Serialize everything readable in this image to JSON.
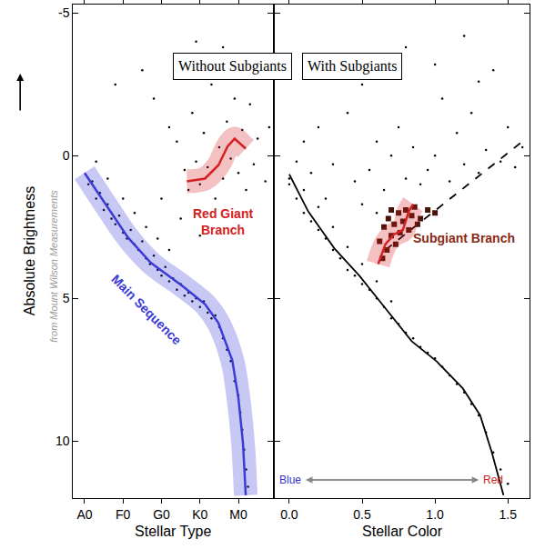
{
  "chart_data": [
    {
      "type": "scatter",
      "title": "Without Subgiants",
      "subtitle": "from Mount Wilson Measurements",
      "x_label": "Stellar Type",
      "y_label": "Absolute Brightness",
      "xlim": [
        -0.3,
        4.9
      ],
      "ylim": [
        12,
        -5.3
      ],
      "xticks": [
        {
          "value": 0,
          "label": "A0"
        },
        {
          "value": 1,
          "label": "F0"
        },
        {
          "value": 2,
          "label": "G0"
        },
        {
          "value": 3,
          "label": "K0"
        },
        {
          "value": 4,
          "label": "M0"
        }
      ],
      "yticks": [
        -5,
        0,
        5,
        10
      ],
      "grid": false,
      "series": [
        {
          "type": "scatter",
          "marker": "dot",
          "color": "#000000",
          "x": [
            0.1,
            0.2,
            0.3,
            0.4,
            0.5,
            0.6,
            0.7,
            0.8,
            0.9,
            1.0,
            1.1,
            1.2,
            1.3,
            1.4,
            1.5,
            1.6,
            1.7,
            1.8,
            1.9,
            2.0,
            2.1,
            2.2,
            2.3,
            2.4,
            2.5,
            2.6,
            2.7,
            2.8,
            2.9,
            3.0,
            3.1,
            3.2,
            3.3,
            3.4,
            3.5,
            3.6,
            3.7,
            3.8,
            3.9,
            4.0,
            4.05,
            4.1,
            4.15,
            4.2,
            4.25,
            0.3,
            0.6,
            1.0,
            1.3,
            1.6,
            1.9,
            2.2,
            2.4,
            2.6,
            2.7,
            2.8,
            2.9,
            3.0,
            3.1,
            3.2,
            3.3,
            3.4,
            3.5,
            3.6,
            3.7,
            3.8,
            3.9,
            4.0,
            4.1,
            4.2,
            4.3,
            4.4,
            4.5,
            4.6,
            3.2,
            2.9,
            3.6,
            4.2,
            1.8,
            2.2,
            1.5,
            0.8,
            4.7,
            4.8,
            2.5,
            2.0,
            3.0
          ],
          "values": [
            1.0,
            0.9,
            1.5,
            1.3,
            1.9,
            1.7,
            2.2,
            2.4,
            2.1,
            2.7,
            2.9,
            2.6,
            3.1,
            3.3,
            3.0,
            3.6,
            3.8,
            3.5,
            4.0,
            4.2,
            3.9,
            4.4,
            4.3,
            4.7,
            4.5,
            4.9,
            4.8,
            5.1,
            5.0,
            5.3,
            5.1,
            5.5,
            5.7,
            5.6,
            6.0,
            6.4,
            6.8,
            7.2,
            7.9,
            8.4,
            9.0,
            9.6,
            10.3,
            11.0,
            11.6,
            0.2,
            0.8,
            1.5,
            2.0,
            2.5,
            2.9,
            3.3,
            -0.5,
            0.5,
            1.2,
            -1.5,
            0.2,
            1.0,
            -0.8,
            0.4,
            -2.5,
            1.5,
            -0.3,
            0.8,
            -1.2,
            0.1,
            -2.0,
            0.6,
            -0.9,
            1.2,
            -1.8,
            0.3,
            -0.6,
            -2.8,
            -3.5,
            -4.0,
            -3.8,
            -3.2,
            -2.0,
            -1.0,
            -3.0,
            -2.5,
            0.9,
            -1.0,
            2.2,
            1.5,
            2.8
          ]
        },
        {
          "name": "Main Sequence",
          "type": "line",
          "line_style": "solid",
          "color": "#3b3bd6",
          "x": [
            0,
            0.66,
            1.13,
            1.72,
            2.54,
            3.13,
            3.48,
            3.84,
            4.0,
            4.12,
            4.19
          ],
          "values": [
            0.6,
            1.95,
            2.87,
            3.75,
            4.56,
            5.2,
            5.86,
            7.17,
            8.5,
            10.1,
            11.9
          ]
        },
        {
          "name": "Red Giant\nBranch",
          "type": "line",
          "line_style": "solid",
          "color": "#d42020",
          "x": [
            2.66,
            3.13,
            3.48,
            3.72,
            3.9,
            4.07,
            4.19
          ],
          "values": [
            0.9,
            0.8,
            0.33,
            -0.33,
            -0.6,
            -0.4,
            -0.25
          ]
        }
      ]
    },
    {
      "type": "scatter",
      "title": "With Subgiants",
      "x_label": "Stellar Color",
      "xlim": [
        -0.1,
        1.65
      ],
      "ylim": [
        12,
        -5.3
      ],
      "xticks": [
        {
          "value": 0,
          "label": "0.0"
        },
        0.5,
        {
          "value": 1,
          "label": "1.0"
        },
        1.5
      ],
      "yticks": [
        -5,
        0,
        5,
        10
      ],
      "grid": false,
      "tick_labels": "x",
      "annotations": [
        "Blue",
        "Red"
      ],
      "series": [
        {
          "type": "scatter",
          "marker": "dot",
          "color": "#000000",
          "x": [
            0.0,
            0.05,
            0.1,
            0.1,
            0.15,
            0.2,
            0.2,
            0.25,
            0.3,
            0.3,
            0.35,
            0.4,
            0.4,
            0.45,
            0.5,
            0.5,
            0.55,
            0.6,
            0.6,
            0.65,
            0.7,
            0.7,
            0.75,
            0.8,
            0.85,
            0.9,
            0.95,
            1.0,
            1.05,
            1.1,
            1.15,
            1.2,
            1.25,
            1.3,
            1.35,
            1.4,
            1.45,
            1.5,
            0.0,
            0.05,
            0.1,
            0.15,
            0.2,
            0.3,
            0.4,
            0.5,
            0.55,
            0.6,
            0.65,
            0.7,
            0.75,
            0.8,
            0.85,
            0.9,
            0.95,
            1.0,
            1.05,
            1.1,
            1.15,
            1.2,
            1.25,
            1.3,
            1.35,
            1.4,
            1.45,
            1.5,
            1.55,
            1.6,
            0.3,
            0.8,
            1.2,
            0.65,
            0.5,
            0.25,
            0.6,
            1.0,
            1.3,
            0.45
          ],
          "values": [
            1.0,
            1.5,
            1.2,
            2.0,
            2.3,
            1.8,
            2.6,
            2.9,
            2.5,
            3.3,
            3.6,
            3.2,
            4.0,
            4.2,
            3.8,
            4.5,
            4.7,
            4.4,
            5.0,
            5.3,
            5.1,
            5.7,
            5.9,
            6.2,
            6.4,
            6.7,
            6.9,
            7.1,
            7.4,
            7.7,
            8.0,
            8.3,
            8.7,
            9.1,
            9.7,
            10.4,
            11.0,
            11.5,
            0.8,
            0.2,
            -0.5,
            0.6,
            -1.0,
            0.3,
            -1.5,
            -2.5,
            0.5,
            -0.5,
            1.2,
            0.0,
            -1.0,
            0.8,
            -0.3,
            1.0,
            0.5,
            0.0,
            -2.0,
            0.9,
            -0.8,
            0.3,
            -1.5,
            0.6,
            -0.2,
            -3.0,
            0.2,
            -1.0,
            0.4,
            -0.3,
            -3.5,
            -3.8,
            -4.2,
            -2.8,
            1.7,
            1.5,
            2.0,
            -3.2,
            -2.6,
            0.9
          ]
        },
        {
          "type": "line",
          "line_style": "solid",
          "color": "#000000",
          "x": [
            0,
            0.13,
            0.31,
            0.48,
            0.66,
            0.84,
            1.01,
            1.19,
            1.31,
            1.39,
            1.47
          ],
          "values": [
            0.65,
            1.95,
            3.25,
            4.2,
            5.35,
            6.5,
            7.2,
            8.15,
            9.1,
            10.4,
            11.9
          ]
        },
        {
          "type": "line",
          "line_style": "dashed",
          "color": "#000000",
          "x": [
            0.66,
            1.6
          ],
          "values": [
            3.3,
            -0.5
          ]
        },
        {
          "type": "scatter",
          "marker": "square",
          "color": "#4a1208",
          "x": [
            0.62,
            0.65,
            0.67,
            0.68,
            0.7,
            0.72,
            0.73,
            0.75,
            0.76,
            0.78,
            0.8,
            0.82,
            0.84,
            0.86,
            0.88,
            0.9,
            0.95,
            1.0,
            0.64,
            0.7
          ],
          "values": [
            3.0,
            2.5,
            3.3,
            2.2,
            2.8,
            2.4,
            3.1,
            2.0,
            2.7,
            2.3,
            1.9,
            2.6,
            2.1,
            1.8,
            2.4,
            2.2,
            1.9,
            2.0,
            3.6,
            1.9
          ]
        },
        {
          "name": "Subgiant Branch",
          "type": "line",
          "line_style": "solid",
          "color": "#d42020",
          "x": [
            0.61,
            0.66,
            0.72,
            0.78,
            0.82,
            0.85
          ],
          "values": [
            3.8,
            3.1,
            2.75,
            2.6,
            1.95,
            1.7
          ]
        }
      ]
    }
  ]
}
